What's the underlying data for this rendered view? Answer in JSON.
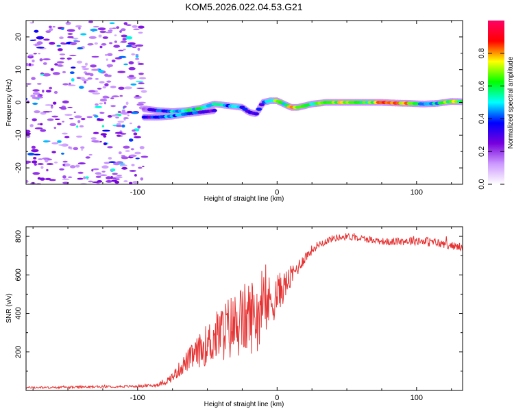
{
  "title": "KOM5.2026.022.04.53.G21",
  "chart_data": [
    {
      "type": "heatmap",
      "name": "spectrogram",
      "xlabel": "Height of straight line (km)",
      "ylabel": "Frequency (Hz)",
      "xlim": [
        -180,
        133
      ],
      "ylim": [
        -25,
        25
      ],
      "xticks": [
        -100,
        0,
        100
      ],
      "xtick_labels": [
        "-100",
        "0",
        "100"
      ],
      "yticks": [
        -20,
        -10,
        0,
        10,
        20
      ],
      "ytick_labels": [
        "-20",
        "-10",
        "0",
        "10",
        "20"
      ],
      "colorbar": {
        "label": "Normalized spectral amplitude",
        "range": [
          0,
          1
        ],
        "ticks": [
          0.0,
          0.2,
          0.4,
          0.6,
          0.8
        ],
        "tick_labels": [
          "0.0",
          "0.2",
          "0.4",
          "0.6",
          "0.8"
        ],
        "colors": [
          "#ffffff",
          "#cc99ff",
          "#7700dd",
          "#0000ff",
          "#00ffff",
          "#00ff00",
          "#ffff00",
          "#ff0000",
          "#ff0066"
        ]
      },
      "trace": {
        "x": [
          -95,
          -85,
          -75,
          -65,
          -55,
          -45,
          -35,
          -25,
          -20,
          -15,
          -10,
          -5,
          0,
          5,
          10,
          15,
          25,
          35,
          45,
          55,
          65,
          75,
          85,
          95,
          105,
          115,
          125,
          133
        ],
        "y": [
          -2,
          -2.5,
          -2.8,
          -2.5,
          -1.8,
          -0.5,
          -1,
          -1.5,
          -3,
          -3.5,
          0,
          0.5,
          0.5,
          -0.5,
          -1.5,
          -1.5,
          -0.5,
          0,
          0,
          0,
          0,
          0,
          -0.2,
          -0.3,
          -0.5,
          -0.3,
          0.3,
          0.2
        ],
        "amplitude": [
          0.2,
          0.35,
          0.45,
          0.5,
          0.55,
          0.5,
          0.45,
          0.4,
          0.35,
          0.3,
          0.35,
          0.45,
          0.75,
          0.55,
          0.8,
          0.7,
          0.55,
          0.65,
          0.7,
          0.65,
          0.6,
          0.8,
          0.8,
          0.75,
          0.4,
          0.5,
          0.7,
          0.6
        ]
      },
      "lower_branch": {
        "x": [
          -95,
          -85,
          -75,
          -65,
          -55,
          -45
        ],
        "y": [
          -4.5,
          -4.5,
          -4.2,
          -3.5,
          -3,
          -2.5
        ],
        "amplitude": [
          0.3,
          0.4,
          0.45,
          0.4,
          0.35,
          0.3
        ]
      },
      "noise_region_x": [
        -180,
        -95
      ]
    },
    {
      "type": "line",
      "name": "snr",
      "xlabel": "Height of straight line (km)",
      "ylabel": "SNR (v/v)",
      "xlim": [
        -180,
        133
      ],
      "ylim": [
        0,
        850
      ],
      "xticks": [
        -100,
        0,
        100
      ],
      "xtick_labels": [
        "-100",
        "0",
        "100"
      ],
      "yticks": [
        200,
        400,
        600,
        800
      ],
      "ytick_labels": [
        "200",
        "400",
        "600",
        "800"
      ],
      "line_color": "#e63333",
      "series": [
        {
          "name": "SNR",
          "x": [
            -180,
            -160,
            -140,
            -120,
            -100,
            -90,
            -85,
            -80,
            -75,
            -70,
            -65,
            -60,
            -55,
            -50,
            -45,
            -40,
            -35,
            -30,
            -25,
            -20,
            -15,
            -10,
            -5,
            0,
            5,
            10,
            15,
            20,
            25,
            30,
            40,
            50,
            60,
            70,
            80,
            90,
            100,
            110,
            120,
            133
          ],
          "values": [
            15,
            15,
            18,
            20,
            22,
            25,
            30,
            45,
            70,
            110,
            150,
            180,
            210,
            240,
            270,
            300,
            320,
            340,
            360,
            380,
            400,
            430,
            460,
            500,
            540,
            590,
            640,
            690,
            730,
            760,
            790,
            800,
            790,
            780,
            770,
            775,
            780,
            770,
            760,
            740
          ],
          "spread": [
            5,
            5,
            6,
            6,
            6,
            8,
            10,
            15,
            25,
            40,
            55,
            70,
            90,
            110,
            130,
            150,
            170,
            180,
            190,
            200,
            190,
            170,
            140,
            110,
            80,
            60,
            40,
            30,
            25,
            20,
            18,
            18,
            18,
            18,
            18,
            22,
            25,
            25,
            22,
            18
          ]
        }
      ]
    }
  ]
}
